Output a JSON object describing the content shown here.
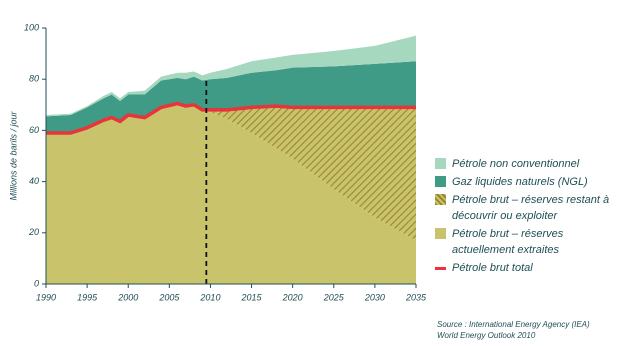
{
  "chart_data": {
    "type": "stacked_area",
    "y_axis_label": "Millions de barils / jour",
    "x": [
      1990,
      1993,
      1995,
      1997,
      1998,
      1999,
      2000,
      2002,
      2004,
      2006,
      2007,
      2008,
      2009,
      2010,
      2012,
      2015,
      2018,
      2020,
      2025,
      2030,
      2035
    ],
    "series": [
      {
        "name": "Pétrole brut – réserves actuellement extraites",
        "color": "#c9c46c",
        "values": [
          59,
          59,
          61,
          64,
          65,
          63.5,
          66,
          65,
          69,
          70.5,
          69.5,
          70,
          68,
          67,
          64.5,
          59,
          53,
          49,
          37,
          26,
          17
        ]
      },
      {
        "name": "Pétrole brut – réserves restant à découvrir ou exploiter",
        "color": "#c9c46c",
        "hatch_color": "#9a8530",
        "hatch": true,
        "values": [
          0,
          0,
          0,
          0,
          0,
          0,
          0,
          0,
          0,
          0,
          0,
          0,
          0,
          1,
          3.5,
          10,
          16.5,
          20,
          32,
          43,
          52
        ]
      },
      {
        "name": "Gaz liquides naturels (NGL)",
        "color": "#3f9b86",
        "values": [
          6.5,
          7,
          8,
          8.5,
          9,
          8,
          8,
          9,
          10.5,
          10,
          10.5,
          11,
          11.5,
          12,
          12.5,
          13.5,
          14,
          15.5,
          16,
          17,
          18
        ]
      },
      {
        "name": "Pétrole non conventionnel",
        "color": "#a6d7bf",
        "values": [
          0.5,
          0.5,
          0.5,
          1,
          1,
          1,
          1,
          1.5,
          1.5,
          2,
          2.5,
          2,
          2,
          2.5,
          3.5,
          4.5,
          5,
          5,
          6,
          7,
          10
        ]
      }
    ],
    "line_series": {
      "name": "Pétrole brut total",
      "color": "#e8343a",
      "values": [
        59,
        59,
        61,
        64,
        65,
        63.5,
        66,
        65,
        69,
        70.5,
        69.5,
        70,
        68,
        68,
        68,
        69,
        69.5,
        69,
        69,
        69,
        69
      ]
    },
    "forecast_start": 2009.5,
    "xlim": [
      1990,
      2035
    ],
    "xticks": [
      1990,
      1995,
      2000,
      2005,
      2010,
      2015,
      2020,
      2025,
      2030,
      2035
    ],
    "ylim": [
      0,
      100
    ],
    "yticks": [
      0,
      20,
      40,
      60,
      80,
      100
    ],
    "legend_order": [
      3,
      2,
      1,
      0
    ],
    "source": [
      "Source : International Energy Agency (IEA)",
      "World Energy Outlook 2010"
    ]
  }
}
